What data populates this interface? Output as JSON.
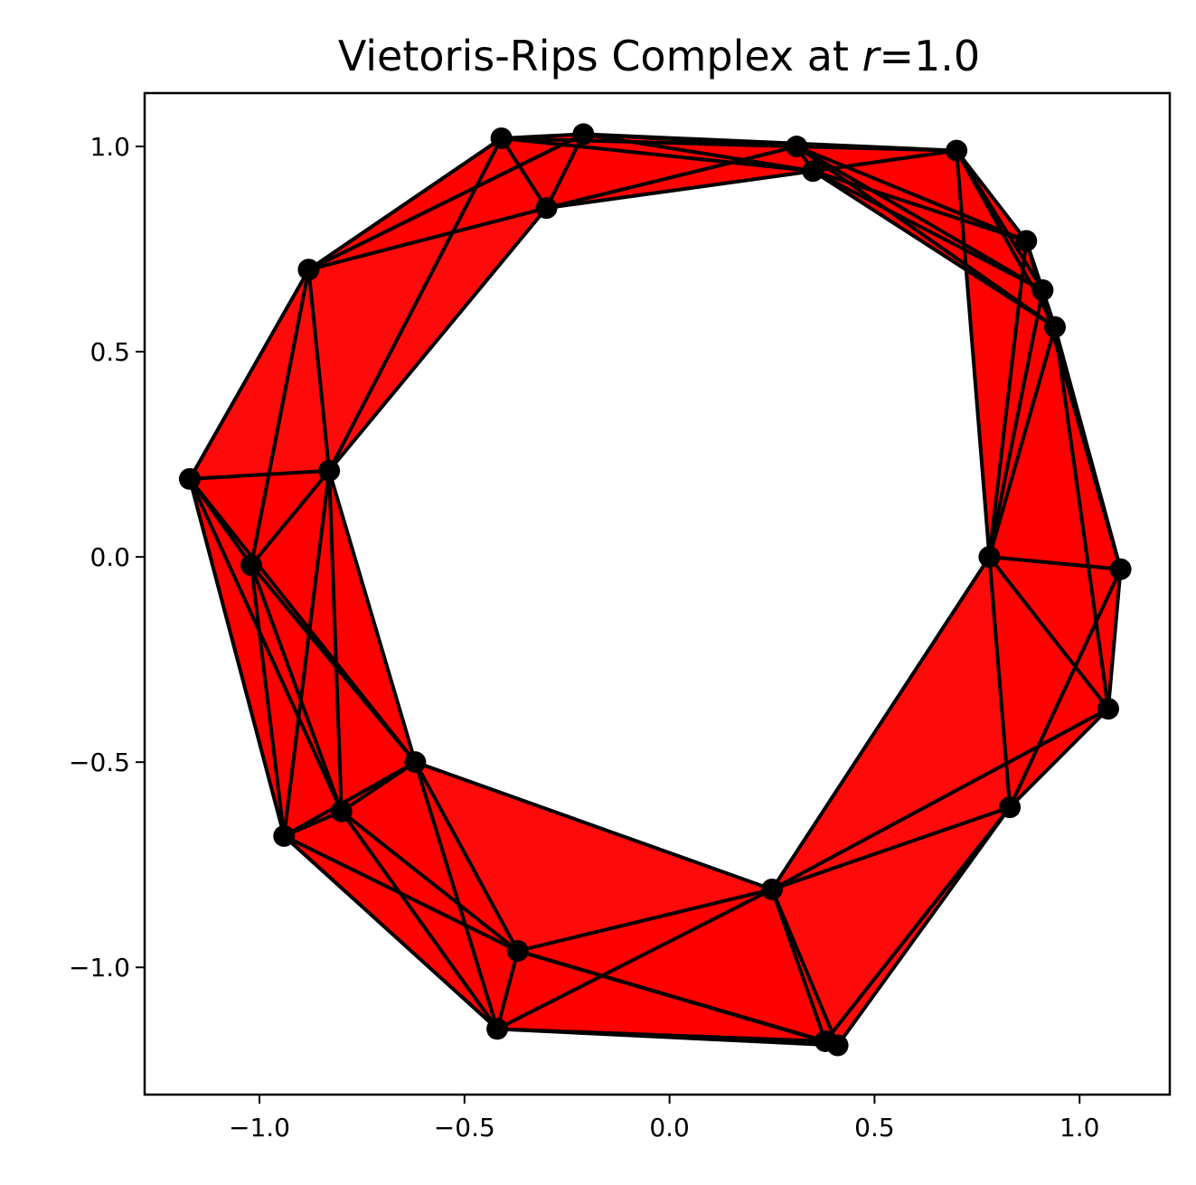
{
  "chart_data": {
    "type": "scatter",
    "title_text": "Vietoris-Rips Complex at ",
    "title_var": "r",
    "title_suffix": "=1.0",
    "xlabel": "",
    "ylabel": "",
    "xlim": [
      -1.28,
      1.22
    ],
    "ylim": [
      -1.31,
      1.13
    ],
    "xticks": [
      -1.0,
      -0.5,
      0.0,
      0.5,
      1.0
    ],
    "yticks": [
      -1.0,
      -0.5,
      0.0,
      0.5,
      1.0
    ],
    "xtick_labels": [
      "−1.0",
      "−0.5",
      "0.0",
      "0.5",
      "1.0"
    ],
    "ytick_labels": [
      "−1.0",
      "−0.5",
      "0.0",
      "0.5",
      "1.0"
    ],
    "radius": 1.0,
    "grid": false,
    "fill_color": "#ff0000",
    "edge_color": "#000000",
    "point_color": "#000000",
    "points": [
      {
        "x": -1.17,
        "y": 0.19
      },
      {
        "x": -0.88,
        "y": 0.7
      },
      {
        "x": -0.41,
        "y": 1.02
      },
      {
        "x": -0.21,
        "y": 1.03
      },
      {
        "x": 0.31,
        "y": 1.0
      },
      {
        "x": 0.35,
        "y": 0.94
      },
      {
        "x": 0.7,
        "y": 0.99
      },
      {
        "x": 0.87,
        "y": 0.77
      },
      {
        "x": 0.91,
        "y": 0.65
      },
      {
        "x": 0.94,
        "y": 0.56
      },
      {
        "x": 1.1,
        "y": -0.03
      },
      {
        "x": 0.78,
        "y": 0.0
      },
      {
        "x": 1.07,
        "y": -0.37
      },
      {
        "x": 0.83,
        "y": -0.61
      },
      {
        "x": 0.25,
        "y": -0.81
      },
      {
        "x": 0.38,
        "y": -1.18
      },
      {
        "x": 0.41,
        "y": -1.19
      },
      {
        "x": -0.42,
        "y": -1.15
      },
      {
        "x": -0.37,
        "y": -0.96
      },
      {
        "x": -0.62,
        "y": -0.5
      },
      {
        "x": -0.94,
        "y": -0.68
      },
      {
        "x": -0.8,
        "y": -0.62
      },
      {
        "x": -1.02,
        "y": -0.02
      },
      {
        "x": -0.83,
        "y": 0.21
      },
      {
        "x": -0.3,
        "y": 0.85
      }
    ]
  }
}
